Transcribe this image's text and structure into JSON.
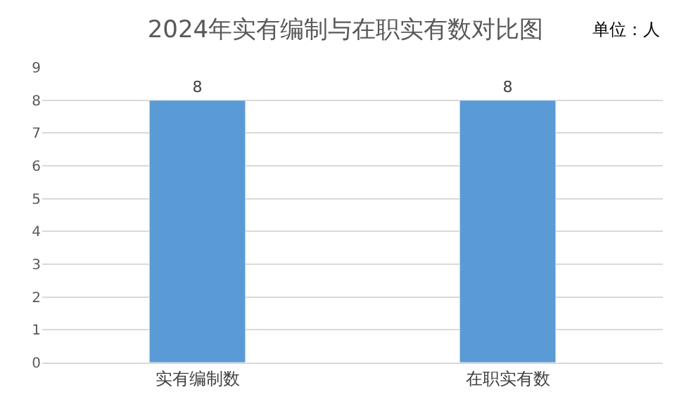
{
  "chart_data": {
    "type": "bar",
    "title": "2024年实有编制与在职实有数对比图",
    "annotations": [
      "单位：人"
    ],
    "categories": [
      "实有编制数",
      "在职实有数"
    ],
    "values": [
      8,
      8
    ],
    "color": "#5b9bd5",
    "ylim": [
      0,
      9
    ],
    "yticks": [
      0,
      1,
      2,
      3,
      4,
      5,
      6,
      7,
      8,
      9
    ],
    "grid": "y",
    "data_labels": true
  }
}
